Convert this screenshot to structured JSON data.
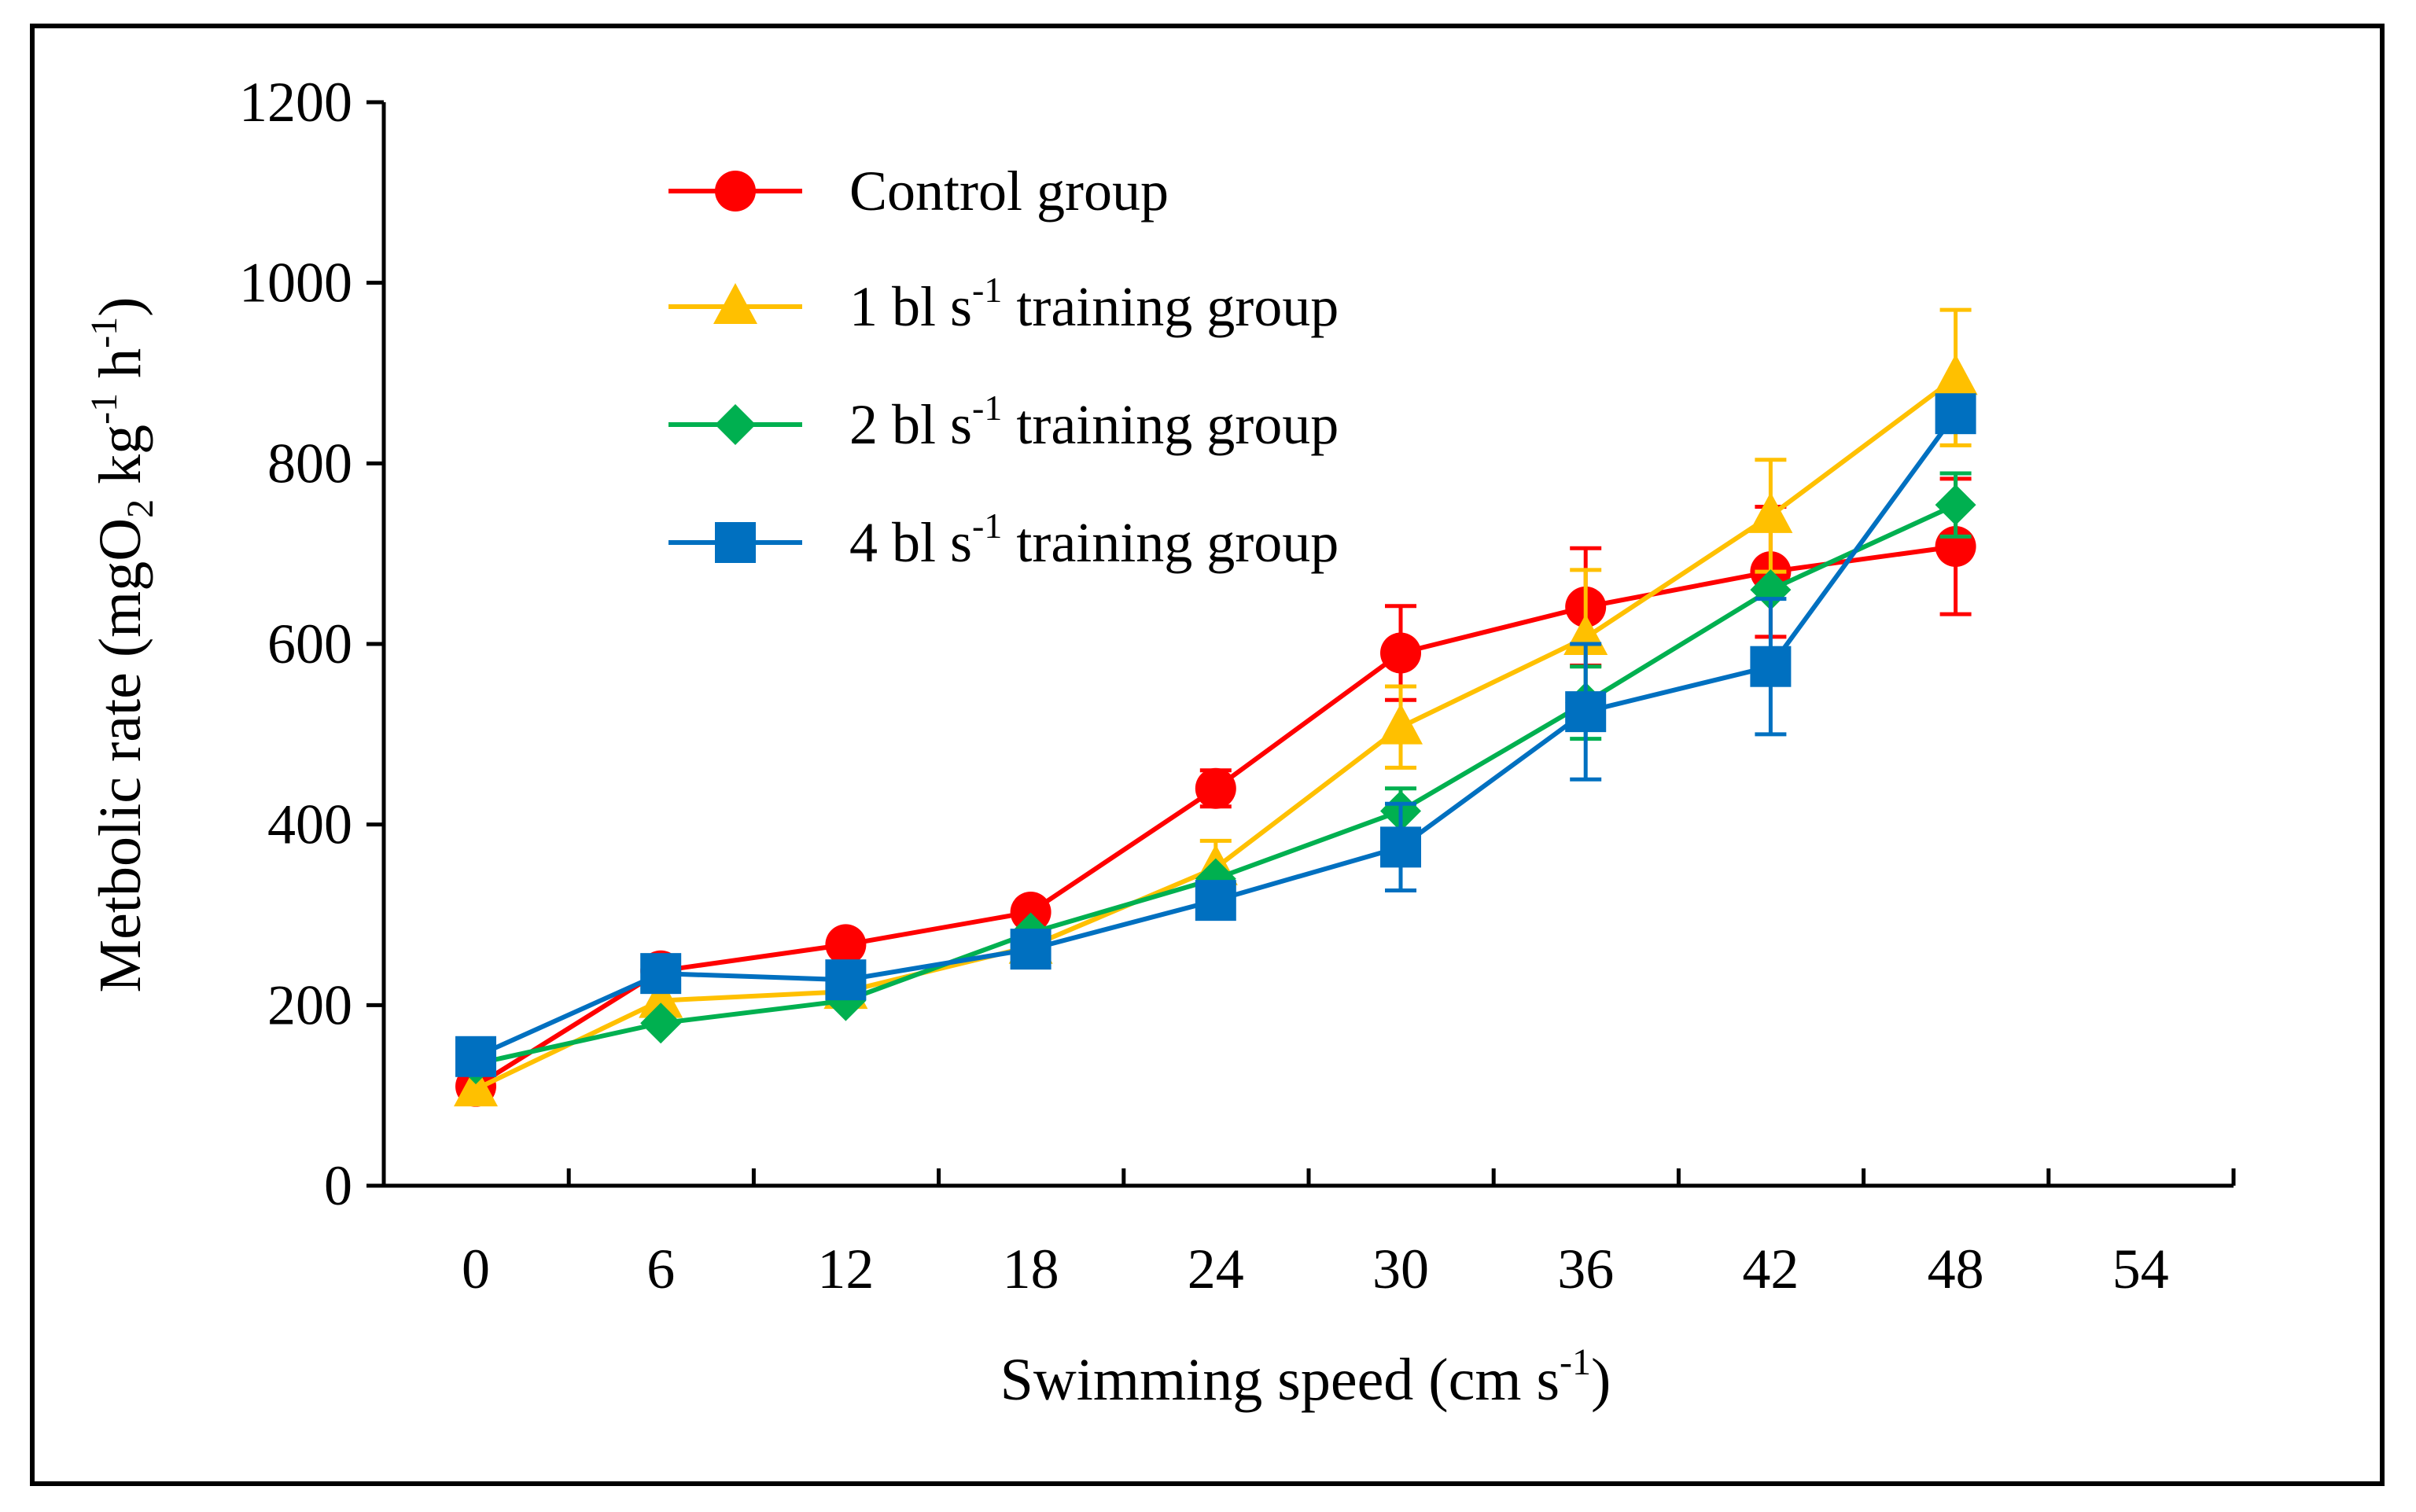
{
  "chart_data": {
    "type": "line",
    "title": "",
    "xlabel": "Swimming speed (cm s",
    "xlabel_sup": "-1",
    "xlabel_end": ")",
    "ylabel_parts": [
      "Metbolic rate (mgO",
      "2",
      " kg",
      "-1",
      " h",
      "-1",
      ")"
    ],
    "x_ticks": [
      0,
      6,
      12,
      18,
      24,
      30,
      36,
      42,
      48,
      54
    ],
    "y_ticks": [
      0,
      200,
      400,
      600,
      800,
      1000,
      1200
    ],
    "xlim": [
      0,
      54
    ],
    "ylim": [
      0,
      1200
    ],
    "x": [
      0,
      6,
      12,
      18,
      24,
      30,
      36,
      42,
      48
    ],
    "series": [
      {
        "name": "Control group",
        "name_parts": [
          "Control group"
        ],
        "color": "#ff0000",
        "marker": "circle",
        "values": [
          110,
          238,
          267,
          303,
          440,
          590,
          641,
          680,
          708
        ],
        "errors": [
          0,
          0,
          0,
          0,
          20,
          52,
          65,
          72,
          75
        ]
      },
      {
        "name": "1 bl s-1 training group",
        "name_parts": [
          "1 bl s",
          "-1",
          " training group"
        ],
        "color": "#ffc000",
        "marker": "triangle",
        "values": [
          107,
          205,
          215,
          265,
          352,
          508,
          607,
          742,
          895
        ],
        "errors": [
          0,
          0,
          0,
          0,
          30,
          45,
          75,
          62,
          75
        ]
      },
      {
        "name": "2 bl s-1 training group",
        "name_parts": [
          "2 bl s",
          "-1",
          " training group"
        ],
        "color": "#00b050",
        "marker": "diamond",
        "values": [
          135,
          180,
          205,
          280,
          340,
          415,
          535,
          660,
          754
        ],
        "errors": [
          0,
          0,
          0,
          0,
          0,
          25,
          40,
          0,
          35
        ]
      },
      {
        "name": "4 bl s-1 training group",
        "name_parts": [
          "4 bl s",
          "-1",
          " training group"
        ],
        "color": "#0070c0",
        "marker": "square",
        "values": [
          143,
          235,
          228,
          262,
          316,
          375,
          525,
          575,
          855
        ],
        "errors": [
          0,
          0,
          0,
          0,
          0,
          48,
          75,
          75,
          0
        ]
      }
    ],
    "legend_position": "top-left",
    "grid": false
  }
}
